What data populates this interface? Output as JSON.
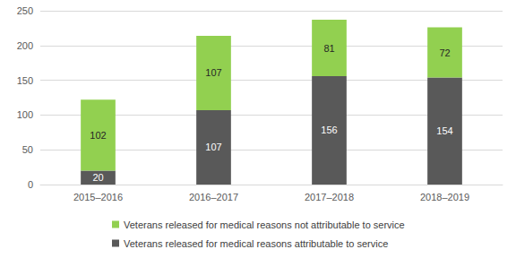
{
  "chart_data": {
    "type": "bar",
    "stacked": true,
    "data_labels": true,
    "grid": true,
    "legend": "bottom",
    "categories": [
      "2015–2016",
      "2016–2017",
      "2017–2018",
      "2018–2019"
    ],
    "series": [
      {
        "name": "Veterans released for medical reasons attributable to service",
        "color": "#595959",
        "values": [
          20,
          107,
          156,
          154
        ]
      },
      {
        "name": "Veterans released for medical reasons not attributable to service",
        "color": "#92d050",
        "values": [
          102,
          107,
          81,
          72
        ]
      }
    ],
    "ylim": [
      0,
      250
    ],
    "yticks": [
      0,
      50,
      100,
      150,
      200,
      250
    ]
  }
}
